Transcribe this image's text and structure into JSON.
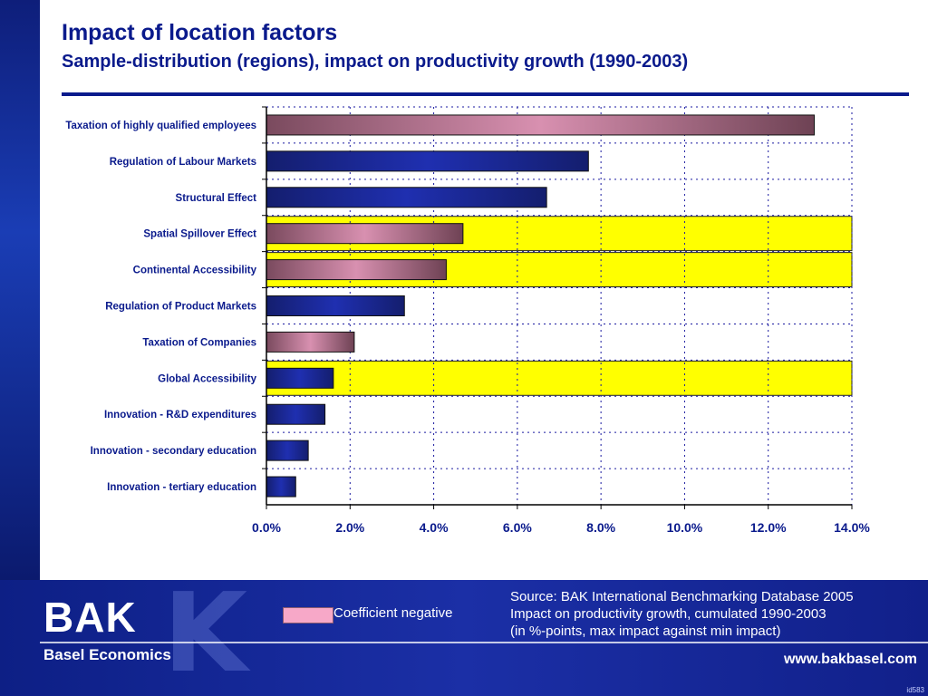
{
  "header": {
    "title": "Impact of location factors",
    "subtitle": "Sample-distribution (regions), impact on productivity growth (1990-2003)"
  },
  "chart_data": {
    "type": "bar",
    "orientation": "horizontal",
    "categories": [
      "Taxation of highly qualified employees",
      "Regulation of Labour Markets",
      "Structural Effect",
      "Spatial Spillover Effect",
      "Continental Accessibility",
      "Regulation of Product Markets",
      "Taxation of Companies",
      "Global Accessibility",
      "Innovation - R&D expenditures",
      "Innovation - secondary education",
      "Innovation - tertiary education"
    ],
    "values": [
      13.1,
      7.7,
      6.7,
      4.7,
      4.3,
      3.3,
      2.1,
      1.6,
      1.4,
      1.0,
      0.7
    ],
    "coefficient_negative": [
      true,
      false,
      false,
      true,
      true,
      false,
      true,
      false,
      false,
      false,
      false
    ],
    "highlighted": [
      false,
      false,
      false,
      true,
      true,
      false,
      false,
      true,
      false,
      false,
      false
    ],
    "xlim": [
      0,
      14
    ],
    "xticks": [
      "0.0%",
      "2.0%",
      "4.0%",
      "6.0%",
      "8.0%",
      "10.0%",
      "12.0%",
      "14.0%"
    ],
    "grid": true,
    "colors": {
      "positive": "#1f2fb0",
      "negative": "#d890b0",
      "highlight": "#ffff00",
      "grid": "#1a1aa0"
    }
  },
  "legend": {
    "negative_label": "Coefficient negative",
    "negative_color": "#f7a8c8"
  },
  "footer": {
    "logo": "BAK",
    "tagline": "Basel Economics",
    "source_lines": [
      "Source: BAK International Benchmarking Database 2005",
      "Impact on productivity growth, cumulated 1990-2003",
      "(in %-points, max impact against min impact)"
    ],
    "website": "www.bakbasel.com",
    "page_id": "id583"
  }
}
